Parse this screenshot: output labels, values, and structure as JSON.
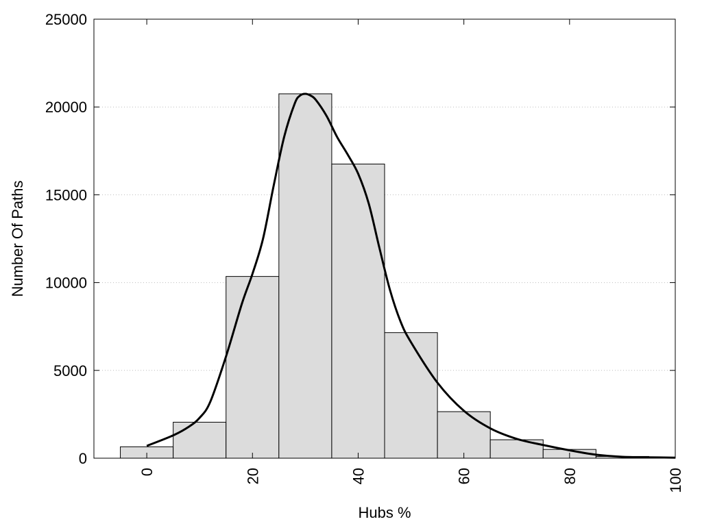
{
  "chart_data": {
    "type": "bar",
    "title": "",
    "xlabel": "Hubs %",
    "ylabel": "Number Of Paths",
    "xlim": [
      -10,
      100
    ],
    "ylim": [
      0,
      25000
    ],
    "x_ticks": [
      0,
      20,
      40,
      60,
      80,
      100
    ],
    "y_ticks": [
      0,
      5000,
      10000,
      15000,
      20000,
      25000
    ],
    "grid": "horizontal dotted",
    "bar_width": 10,
    "bar_color": "#dcdcdc",
    "bars": [
      {
        "x": 0,
        "value": 650
      },
      {
        "x": 10,
        "value": 2050
      },
      {
        "x": 20,
        "value": 10350
      },
      {
        "x": 30,
        "value": 20750
      },
      {
        "x": 40,
        "value": 16750
      },
      {
        "x": 50,
        "value": 7150
      },
      {
        "x": 60,
        "value": 2650
      },
      {
        "x": 70,
        "value": 1050
      },
      {
        "x": 80,
        "value": 500
      },
      {
        "x": 90,
        "value": 100
      },
      {
        "x": 100,
        "value": 30
      }
    ],
    "curve": {
      "type": "line",
      "color": "#000000",
      "x": [
        0,
        5,
        8,
        10,
        12,
        15,
        18,
        20,
        22,
        24,
        26,
        28,
        29,
        30,
        31,
        32,
        34,
        36,
        38,
        40,
        42,
        44,
        46,
        48,
        50,
        55,
        60,
        65,
        70,
        75,
        80,
        85,
        90,
        95,
        100
      ],
      "y": [
        700,
        1300,
        1800,
        2300,
        3200,
        5800,
        8800,
        10500,
        12500,
        15500,
        18300,
        20200,
        20650,
        20750,
        20650,
        20400,
        19500,
        18300,
        17300,
        16200,
        14500,
        12000,
        9600,
        7800,
        6600,
        4300,
        2700,
        1700,
        1100,
        750,
        450,
        200,
        80,
        50,
        30
      ]
    }
  }
}
